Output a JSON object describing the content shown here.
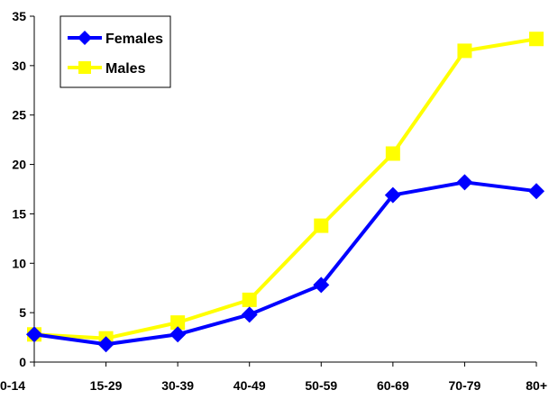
{
  "chart_data": {
    "type": "line",
    "title": "",
    "xlabel": "",
    "ylabel": "",
    "categories": [
      "0-14",
      "15-29",
      "30-39",
      "40-49",
      "50-59",
      "60-69",
      "70-79",
      "80+"
    ],
    "ylim": [
      0,
      35
    ],
    "yticks": [
      "0",
      "5",
      "10",
      "15",
      "20",
      "25",
      "30",
      "35"
    ],
    "grid": false,
    "legend_position": "top-left",
    "series": [
      {
        "name": "Females",
        "color": "#0000ff",
        "marker": "diamond",
        "values": [
          2.8,
          1.8,
          2.8,
          4.8,
          7.8,
          16.9,
          18.2,
          17.3
        ]
      },
      {
        "name": "Males",
        "color": "#ffff00",
        "marker": "square",
        "values": [
          2.8,
          2.4,
          4.0,
          6.3,
          13.8,
          21.1,
          31.5,
          32.7
        ]
      }
    ]
  }
}
